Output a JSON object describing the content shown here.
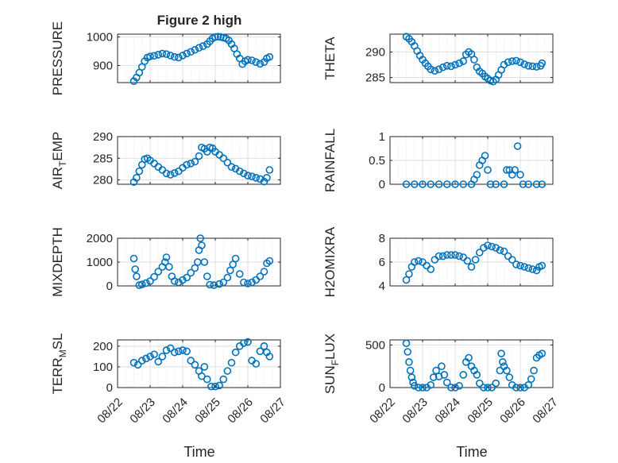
{
  "figure": {
    "title": "Figure 2 high",
    "marker_color": "#0072BD",
    "grid_color": "#dfdfdf",
    "axis_color": "#262626"
  },
  "chart_data": [
    {
      "type": "scatter",
      "ylabel": "PRESSURE",
      "xlabel": "",
      "xlim": [
        "08/22",
        "08/27"
      ],
      "ylim": [
        840,
        1010
      ],
      "yticks": [
        900,
        1000
      ],
      "yticklabels": [
        "900",
        "1000"
      ],
      "xticklabels": [],
      "grid": true,
      "x": [
        "08/22 12:00",
        "08/22 14:00",
        "08/22 16:00",
        "08/22 18:00",
        "08/22 20:00",
        "08/22 22:00",
        "08/23 00:00",
        "08/23 03:00",
        "08/23 06:00",
        "08/23 09:00",
        "08/23 12:00",
        "08/23 15:00",
        "08/23 18:00",
        "08/23 21:00",
        "08/24 00:00",
        "08/24 03:00",
        "08/24 06:00",
        "08/24 09:00",
        "08/24 12:00",
        "08/24 15:00",
        "08/24 18:00",
        "08/24 20:00",
        "08/24 22:00",
        "08/25 00:00",
        "08/25 02:00",
        "08/25 04:00",
        "08/25 06:00",
        "08/25 08:00",
        "08/25 10:00",
        "08/25 12:00",
        "08/25 14:00",
        "08/25 16:00",
        "08/25 18:00",
        "08/25 20:00",
        "08/25 22:00",
        "08/26 00:00",
        "08/26 03:00",
        "08/26 06:00",
        "08/26 09:00",
        "08/26 12:00",
        "08/26 14:00",
        "08/26 16:00"
      ],
      "y": [
        845,
        858,
        875,
        895,
        915,
        928,
        932,
        934,
        938,
        942,
        940,
        935,
        930,
        928,
        935,
        942,
        948,
        955,
        962,
        968,
        975,
        985,
        995,
        1000,
        1001,
        1000,
        998,
        995,
        988,
        975,
        960,
        940,
        925,
        905,
        915,
        920,
        918,
        912,
        906,
        912,
        925,
        930
      ]
    },
    {
      "type": "scatter",
      "ylabel": "THETA",
      "xlabel": "",
      "xlim": [
        "08/22",
        "08/27"
      ],
      "ylim": [
        284,
        293.5
      ],
      "yticks": [
        285,
        290
      ],
      "yticklabels": [
        "285",
        "290"
      ],
      "xticklabels": [],
      "grid": true,
      "x": [
        "08/22 12:00",
        "08/22 14:00",
        "08/22 16:00",
        "08/22 18:00",
        "08/22 20:00",
        "08/22 22:00",
        "08/23 00:00",
        "08/23 02:00",
        "08/23 04:00",
        "08/23 06:00",
        "08/23 09:00",
        "08/23 12:00",
        "08/23 15:00",
        "08/23 18:00",
        "08/23 21:00",
        "08/24 00:00",
        "08/24 03:00",
        "08/24 06:00",
        "08/24 08:00",
        "08/24 10:00",
        "08/24 12:00",
        "08/24 14:00",
        "08/24 16:00",
        "08/24 18:00",
        "08/24 20:00",
        "08/24 22:00",
        "08/25 00:00",
        "08/25 02:00",
        "08/25 04:00",
        "08/25 06:00",
        "08/25 08:00",
        "08/25 10:00",
        "08/25 12:00",
        "08/25 15:00",
        "08/25 18:00",
        "08/25 21:00",
        "08/26 00:00",
        "08/26 03:00",
        "08/26 06:00",
        "08/26 09:00",
        "08/26 12:00",
        "08/26 15:00",
        "08/26 16:00"
      ],
      "y": [
        293,
        292.6,
        292,
        291.2,
        290.2,
        289.3,
        288.5,
        287.8,
        287.2,
        286.6,
        286.3,
        286.6,
        287,
        287.3,
        287.2,
        287.5,
        287.8,
        288.2,
        289.5,
        290,
        289.6,
        288.5,
        287,
        286.2,
        285.8,
        285.2,
        284.8,
        284.4,
        284.2,
        284.6,
        285.5,
        286.5,
        287.5,
        288,
        288.2,
        288.3,
        288,
        287.6,
        287.3,
        287.2,
        287.1,
        287.3,
        287.8
      ]
    },
    {
      "type": "scatter",
      "ylabel": "AIR_TEMP",
      "xlabel": "",
      "xlim": [
        "08/22",
        "08/27"
      ],
      "ylim": [
        279,
        290
      ],
      "yticks": [
        280,
        285,
        290
      ],
      "yticklabels": [
        "280",
        "285",
        "290"
      ],
      "xticklabels": [],
      "grid": true,
      "x": [
        "08/22 12:00",
        "08/22 14:00",
        "08/22 16:00",
        "08/22 18:00",
        "08/22 20:00",
        "08/22 22:00",
        "08/23 00:00",
        "08/23 03:00",
        "08/23 06:00",
        "08/23 09:00",
        "08/23 12:00",
        "08/23 15:00",
        "08/23 18:00",
        "08/23 21:00",
        "08/24 00:00",
        "08/24 03:00",
        "08/24 06:00",
        "08/24 09:00",
        "08/24 12:00",
        "08/24 14:00",
        "08/24 16:00",
        "08/24 18:00",
        "08/24 20:00",
        "08/24 22:00",
        "08/25 00:00",
        "08/25 03:00",
        "08/25 06:00",
        "08/25 09:00",
        "08/25 12:00",
        "08/25 15:00",
        "08/25 18:00",
        "08/25 21:00",
        "08/26 00:00",
        "08/26 03:00",
        "08/26 06:00",
        "08/26 09:00",
        "08/26 12:00",
        "08/26 14:00",
        "08/26 16:00"
      ],
      "y": [
        279.5,
        280.5,
        282,
        283.5,
        284.8,
        285,
        284.5,
        283.8,
        283,
        282.3,
        281.5,
        281.2,
        281.6,
        282,
        282.8,
        283.5,
        283.8,
        284.2,
        285.5,
        287.5,
        287.2,
        286.5,
        287.5,
        287.3,
        286.5,
        285.8,
        285,
        284,
        283,
        282.6,
        282,
        281.5,
        281,
        280.8,
        280.5,
        280.2,
        279.6,
        280.5,
        282.3
      ]
    },
    {
      "type": "scatter",
      "ylabel": "RAINFALL",
      "xlabel": "",
      "xlim": [
        "08/22",
        "08/27"
      ],
      "ylim": [
        0,
        1
      ],
      "yticks": [
        0,
        0.5,
        1
      ],
      "yticklabels": [
        "0",
        "0.5",
        "1"
      ],
      "xticklabels": [],
      "grid": true,
      "x": [
        "08/22 12:00",
        "08/22 18:00",
        "08/23 00:00",
        "08/23 06:00",
        "08/23 12:00",
        "08/23 18:00",
        "08/24 00:00",
        "08/24 06:00",
        "08/24 12:00",
        "08/24 14:00",
        "08/24 16:00",
        "08/24 18:00",
        "08/24 20:00",
        "08/24 22:00",
        "08/25 00:00",
        "08/25 02:00",
        "08/25 06:00",
        "08/25 12:00",
        "08/25 14:00",
        "08/25 16:00",
        "08/25 18:00",
        "08/25 20:00",
        "08/25 22:00",
        "08/26 00:00",
        "08/26 02:00",
        "08/26 06:00",
        "08/26 12:00",
        "08/26 16:00"
      ],
      "y": [
        0,
        0,
        0,
        0,
        0,
        0,
        0,
        0,
        0,
        0.1,
        0.2,
        0.4,
        0.5,
        0.6,
        0.3,
        0,
        0,
        0,
        0.3,
        0.3,
        0.2,
        0.3,
        0.8,
        0.2,
        0,
        0,
        0,
        0
      ]
    },
    {
      "type": "scatter",
      "ylabel": "MIXDEPTH",
      "xlabel": "",
      "xlim": [
        "08/22",
        "08/27"
      ],
      "ylim": [
        0,
        2000
      ],
      "yticks": [
        0,
        1000,
        2000
      ],
      "yticklabels": [
        "0",
        "1000",
        "2000"
      ],
      "xticklabels": [],
      "grid": true,
      "x": [
        "08/22 12:00",
        "08/22 13:00",
        "08/22 14:00",
        "08/22 16:00",
        "08/22 18:00",
        "08/22 21:00",
        "08/23 00:00",
        "08/23 03:00",
        "08/23 06:00",
        "08/23 09:00",
        "08/23 11:00",
        "08/23 12:00",
        "08/23 14:00",
        "08/23 16:00",
        "08/23 18:00",
        "08/23 21:00",
        "08/24 00:00",
        "08/24 03:00",
        "08/24 06:00",
        "08/24 09:00",
        "08/24 11:00",
        "08/24 12:00",
        "08/24 13:00",
        "08/24 14:00",
        "08/24 16:00",
        "08/24 18:00",
        "08/24 20:00",
        "08/24 23:00",
        "08/25 03:00",
        "08/25 06:00",
        "08/25 09:00",
        "08/25 11:00",
        "08/25 13:00",
        "08/25 15:00",
        "08/25 18:00",
        "08/25 21:00",
        "08/26 00:00",
        "08/26 03:00",
        "08/26 06:00",
        "08/26 09:00",
        "08/26 12:00",
        "08/26 14:00",
        "08/26 16:00"
      ],
      "y": [
        1150,
        700,
        400,
        30,
        60,
        120,
        200,
        380,
        600,
        800,
        1000,
        1200,
        800,
        400,
        200,
        150,
        250,
        350,
        550,
        750,
        1000,
        1500,
        2000,
        1700,
        1000,
        400,
        50,
        30,
        80,
        150,
        350,
        650,
        900,
        1150,
        500,
        150,
        100,
        150,
        250,
        400,
        600,
        950,
        1050
      ]
    },
    {
      "type": "scatter",
      "ylabel": "H2OMIXRA",
      "xlabel": "",
      "xlim": [
        "08/22",
        "08/27"
      ],
      "ylim": [
        4,
        8
      ],
      "yticks": [
        4,
        6,
        8
      ],
      "yticklabels": [
        "4",
        "6",
        "8"
      ],
      "xticklabels": [],
      "grid": true,
      "x": [
        "08/22 12:00",
        "08/22 14:00",
        "08/22 16:00",
        "08/22 18:00",
        "08/22 21:00",
        "08/23 00:00",
        "08/23 03:00",
        "08/23 06:00",
        "08/23 09:00",
        "08/23 12:00",
        "08/23 15:00",
        "08/23 18:00",
        "08/23 21:00",
        "08/24 00:00",
        "08/24 03:00",
        "08/24 06:00",
        "08/24 09:00",
        "08/24 12:00",
        "08/24 15:00",
        "08/24 18:00",
        "08/24 21:00",
        "08/25 00:00",
        "08/25 03:00",
        "08/25 06:00",
        "08/25 09:00",
        "08/25 12:00",
        "08/25 15:00",
        "08/25 18:00",
        "08/25 21:00",
        "08/26 00:00",
        "08/26 03:00",
        "08/26 06:00",
        "08/26 09:00",
        "08/26 12:00",
        "08/26 14:00",
        "08/26 16:00"
      ],
      "y": [
        4.5,
        5,
        5.6,
        6,
        6.1,
        6,
        5.7,
        5.4,
        6.2,
        6.5,
        6.5,
        6.6,
        6.6,
        6.6,
        6.5,
        6.4,
        6.1,
        5.6,
        6.2,
        6.8,
        7.2,
        7.4,
        7.3,
        7.2,
        7,
        6.9,
        6.5,
        6.2,
        5.8,
        5.7,
        5.6,
        5.5,
        5.4,
        5.3,
        5.6,
        5.7
      ]
    },
    {
      "type": "scatter",
      "ylabel": "TERR_MSL",
      "xlabel": "",
      "xlim": [
        "08/22",
        "08/27"
      ],
      "ylim": [
        0,
        230
      ],
      "yticks": [
        0,
        100,
        200
      ],
      "yticklabels": [
        "0",
        "100",
        "200"
      ],
      "xticklabels": [],
      "grid": true,
      "x": [
        "08/22 12:00",
        "08/22 15:00",
        "08/22 18:00",
        "08/22 21:00",
        "08/23 00:00",
        "08/23 03:00",
        "08/23 06:00",
        "08/23 09:00",
        "08/23 12:00",
        "08/23 15:00",
        "08/23 18:00",
        "08/23 21:00",
        "08/24 00:00",
        "08/24 03:00",
        "08/24 06:00",
        "08/24 09:00",
        "08/24 12:00",
        "08/24 14:00",
        "08/24 16:00",
        "08/24 18:00",
        "08/24 21:00",
        "08/25 00:00",
        "08/25 03:00",
        "08/25 06:00",
        "08/25 09:00",
        "08/25 12:00",
        "08/25 15:00",
        "08/25 18:00",
        "08/25 21:00",
        "08/26 00:00",
        "08/26 03:00",
        "08/26 06:00",
        "08/26 09:00",
        "08/26 12:00",
        "08/26 14:00",
        "08/26 16:00"
      ],
      "y": [
        120,
        110,
        130,
        140,
        150,
        160,
        125,
        150,
        180,
        190,
        170,
        175,
        180,
        175,
        130,
        110,
        80,
        55,
        100,
        40,
        5,
        5,
        10,
        40,
        80,
        120,
        170,
        200,
        215,
        220,
        130,
        115,
        175,
        200,
        170,
        150
      ]
    },
    {
      "type": "scatter",
      "ylabel": "SUN_FLUX",
      "xlabel": "",
      "xlim": [
        "08/22",
        "08/27"
      ],
      "ylim": [
        0,
        560
      ],
      "yticks": [
        0,
        500
      ],
      "yticklabels": [
        "0",
        "500"
      ],
      "xticklabels": [],
      "grid": true,
      "x": [
        "08/22 12:00",
        "08/22 13:00",
        "08/22 14:00",
        "08/22 15:00",
        "08/22 16:00",
        "08/22 17:00",
        "08/22 18:00",
        "08/22 21:00",
        "08/23 00:00",
        "08/23 03:00",
        "08/23 06:00",
        "08/23 08:00",
        "08/23 10:00",
        "08/23 12:00",
        "08/23 14:00",
        "08/23 16:00",
        "08/23 18:00",
        "08/23 21:00",
        "08/24 00:00",
        "08/24 03:00",
        "08/24 06:00",
        "08/24 08:00",
        "08/24 10:00",
        "08/24 12:00",
        "08/24 14:00",
        "08/24 16:00",
        "08/24 18:00",
        "08/24 21:00",
        "08/25 00:00",
        "08/25 03:00",
        "08/25 06:00",
        "08/25 09:00",
        "08/25 10:00",
        "08/25 11:00",
        "08/25 12:00",
        "08/25 14:00",
        "08/25 16:00",
        "08/25 18:00",
        "08/25 21:00",
        "08/26 00:00",
        "08/26 03:00",
        "08/26 06:00",
        "08/26 08:00",
        "08/26 10:00",
        "08/26 12:00",
        "08/26 14:00",
        "08/26 16:00"
      ],
      "y": [
        520,
        420,
        300,
        200,
        120,
        60,
        20,
        0,
        0,
        0,
        30,
        120,
        200,
        130,
        250,
        150,
        60,
        0,
        0,
        20,
        150,
        300,
        350,
        250,
        200,
        150,
        50,
        0,
        0,
        0,
        50,
        200,
        400,
        300,
        250,
        200,
        120,
        30,
        0,
        0,
        0,
        30,
        100,
        200,
        350,
        380,
        400
      ]
    }
  ],
  "shared": {
    "xticklabels": [
      "08/22",
      "08/23",
      "08/24",
      "08/25",
      "08/26",
      "08/27"
    ],
    "xlabel": "Time"
  }
}
